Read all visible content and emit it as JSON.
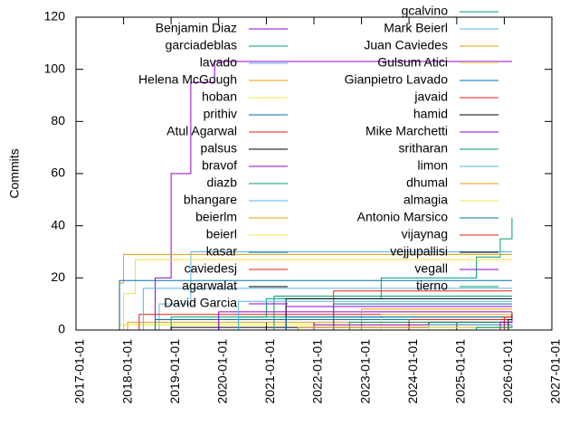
{
  "chart_data": {
    "type": "line",
    "step": true,
    "y_label": "Commits",
    "xlim": [
      "2017-01-01",
      "2027-01-01"
    ],
    "xticks": [
      "2017-01-01",
      "2018-01-01",
      "2019-01-01",
      "2020-01-01",
      "2021-01-01",
      "2022-01-01",
      "2023-01-01",
      "2024-01-01",
      "2025-01-01",
      "2026-01-01",
      "2027-01-01"
    ],
    "ylim": [
      0,
      120
    ],
    "yticks": [
      0,
      20,
      40,
      60,
      80,
      100,
      120
    ],
    "grid": false,
    "legend_columns": 2,
    "series": [
      {
        "name": "Benjamin Diaz",
        "color": "#9400d3",
        "x": [
          "2018-03-01",
          "2018-09-01",
          "2019-01-01",
          "2019-06-01",
          "2019-12-01",
          "2026-03-01"
        ],
        "values": [
          0,
          20,
          60,
          95,
          103,
          103
        ]
      },
      {
        "name": "garciadeblas",
        "color": "#009e73",
        "x": [
          "2017-11-01",
          "2019-01-01",
          "2021-01-01",
          "2023-06-01",
          "2025-06-01",
          "2025-12-01",
          "2026-03-01"
        ],
        "values": [
          0,
          5,
          12,
          20,
          28,
          35,
          43
        ]
      },
      {
        "name": "lavado",
        "color": "#56b4e9",
        "x": [
          "2018-03-01",
          "2018-10-01",
          "2019-06-01",
          "2026-03-01"
        ],
        "values": [
          0,
          10,
          30,
          30
        ]
      },
      {
        "name": "Helena McGough",
        "color": "#e69f00",
        "x": [
          "2017-12-01",
          "2018-02-01",
          "2026-03-01"
        ],
        "values": [
          0,
          3,
          3
        ]
      },
      {
        "name": "hoban",
        "color": "#f0e442",
        "x": [
          "2017-10-01",
          "2017-12-01",
          "2026-03-01"
        ],
        "values": [
          0,
          2,
          2
        ]
      },
      {
        "name": "prithiv",
        "color": "#0072b2",
        "x": [
          "2018-06-01",
          "2018-09-01",
          "2026-03-01"
        ],
        "values": [
          0,
          4,
          4
        ]
      },
      {
        "name": "Atul Agarwal",
        "color": "#e51e10",
        "x": [
          "2018-01-01",
          "2018-05-01",
          "2026-03-01"
        ],
        "values": [
          0,
          6,
          6
        ]
      },
      {
        "name": "palsus",
        "color": "#000000",
        "x": [
          "2018-02-01",
          "2019-01-01",
          "2026-03-01"
        ],
        "values": [
          0,
          1,
          1
        ]
      },
      {
        "name": "bravof",
        "color": "#9400d3",
        "x": [
          "2020-06-01",
          "2021-06-01",
          "2026-03-01"
        ],
        "values": [
          0,
          9,
          9
        ]
      },
      {
        "name": "diazb",
        "color": "#009e73",
        "x": [
          "2019-06-01",
          "2020-06-01",
          "2026-03-01"
        ],
        "values": [
          0,
          5,
          5
        ]
      },
      {
        "name": "bhangare",
        "color": "#56b4e9",
        "x": [
          "2017-12-01",
          "2018-06-01",
          "2026-03-01"
        ],
        "values": [
          0,
          16,
          16
        ]
      },
      {
        "name": "beierlm",
        "color": "#e69f00",
        "x": [
          "2017-10-01",
          "2017-12-01",
          "2018-01-01",
          "2026-03-01"
        ],
        "values": [
          0,
          18,
          29,
          29
        ]
      },
      {
        "name": "beierl",
        "color": "#f0e442",
        "x": [
          "2017-10-01",
          "2018-01-01",
          "2018-04-01",
          "2026-03-01"
        ],
        "values": [
          0,
          14,
          27,
          27
        ]
      },
      {
        "name": "kasar",
        "color": "#0072b2",
        "x": [
          "2017-09-01",
          "2017-12-01",
          "2026-03-01"
        ],
        "values": [
          0,
          19,
          19
        ]
      },
      {
        "name": "caviedesj",
        "color": "#e51e10",
        "x": [
          "2021-03-01",
          "2022-06-01",
          "2026-03-01"
        ],
        "values": [
          0,
          15,
          15
        ]
      },
      {
        "name": "agarwalat",
        "color": "#000000",
        "x": [
          "2020-09-01",
          "2021-06-01",
          "2026-03-01"
        ],
        "values": [
          0,
          12,
          12
        ]
      },
      {
        "name": "David Garcia",
        "color": "#9400d3",
        "x": [
          "2019-01-01",
          "2020-01-01",
          "2026-03-01"
        ],
        "values": [
          0,
          7,
          7
        ]
      },
      {
        "name": "gcalvino",
        "color": "#009e73",
        "x": [
          "2020-03-01",
          "2021-03-01",
          "2026-03-01"
        ],
        "values": [
          0,
          13,
          13
        ]
      },
      {
        "name": "Mark Beierl",
        "color": "#56b4e9",
        "x": [
          "2019-06-01",
          "2020-06-01",
          "2026-03-01"
        ],
        "values": [
          0,
          11,
          11
        ]
      },
      {
        "name": "Juan Caviedes",
        "color": "#e69f00",
        "x": [
          "2022-01-01",
          "2023-01-01",
          "2026-03-01"
        ],
        "values": [
          0,
          8,
          8
        ]
      },
      {
        "name": "Gulsum Atici",
        "color": "#f0e442",
        "x": [
          "2022-06-01",
          "2023-06-01",
          "2026-03-01"
        ],
        "values": [
          0,
          6,
          6
        ]
      },
      {
        "name": "Gianpietro Lavado",
        "color": "#0072b2",
        "x": [
          "2021-06-01",
          "2022-06-01",
          "2026-03-01"
        ],
        "values": [
          0,
          10,
          10
        ]
      },
      {
        "name": "javaid",
        "color": "#e51e10",
        "x": [
          "2023-01-01",
          "2024-01-01",
          "2026-03-01"
        ],
        "values": [
          0,
          4,
          4
        ]
      },
      {
        "name": "hamid",
        "color": "#000000",
        "x": [
          "2023-06-01",
          "2024-06-01",
          "2026-03-01"
        ],
        "values": [
          0,
          3,
          3
        ]
      },
      {
        "name": "Mike Marchetti",
        "color": "#9400d3",
        "x": [
          "2021-01-01",
          "2022-01-01",
          "2026-03-01"
        ],
        "values": [
          0,
          2,
          2
        ]
      },
      {
        "name": "sritharan",
        "color": "#009e73",
        "x": [
          "2022-01-01",
          "2022-10-01",
          "2026-03-01"
        ],
        "values": [
          0,
          3,
          3
        ]
      },
      {
        "name": "limon",
        "color": "#56b4e9",
        "x": [
          "2024-01-01",
          "2024-06-01",
          "2026-03-01"
        ],
        "values": [
          0,
          2,
          2
        ]
      },
      {
        "name": "dhumal",
        "color": "#e69f00",
        "x": [
          "2021-06-01",
          "2021-09-01",
          "2026-03-01"
        ],
        "values": [
          0,
          1,
          1
        ]
      },
      {
        "name": "almagia",
        "color": "#f0e442",
        "x": [
          "2023-09-01",
          "2024-06-01",
          "2026-03-01"
        ],
        "values": [
          0,
          1,
          1
        ]
      },
      {
        "name": "Antonio Marsico",
        "color": "#0072b2",
        "x": [
          "2021-01-01",
          "2021-06-01",
          "2026-03-01"
        ],
        "values": [
          0,
          5,
          5
        ]
      },
      {
        "name": "vijaynag",
        "color": "#e51e10",
        "x": [
          "2025-09-01",
          "2026-01-01",
          "2026-03-01"
        ],
        "values": [
          0,
          5,
          7
        ]
      },
      {
        "name": "vejjupallisi",
        "color": "#000000",
        "x": [
          "2025-10-01",
          "2026-02-01",
          "2026-03-01"
        ],
        "values": [
          0,
          4,
          6
        ]
      },
      {
        "name": "vegall",
        "color": "#9400d3",
        "x": [
          "2025-06-01",
          "2025-12-01",
          "2026-03-01"
        ],
        "values": [
          0,
          3,
          5
        ]
      },
      {
        "name": "tierno",
        "color": "#009e73",
        "x": [
          "2024-06-01",
          "2025-06-01",
          "2026-03-01"
        ],
        "values": [
          0,
          1,
          2
        ]
      }
    ]
  }
}
